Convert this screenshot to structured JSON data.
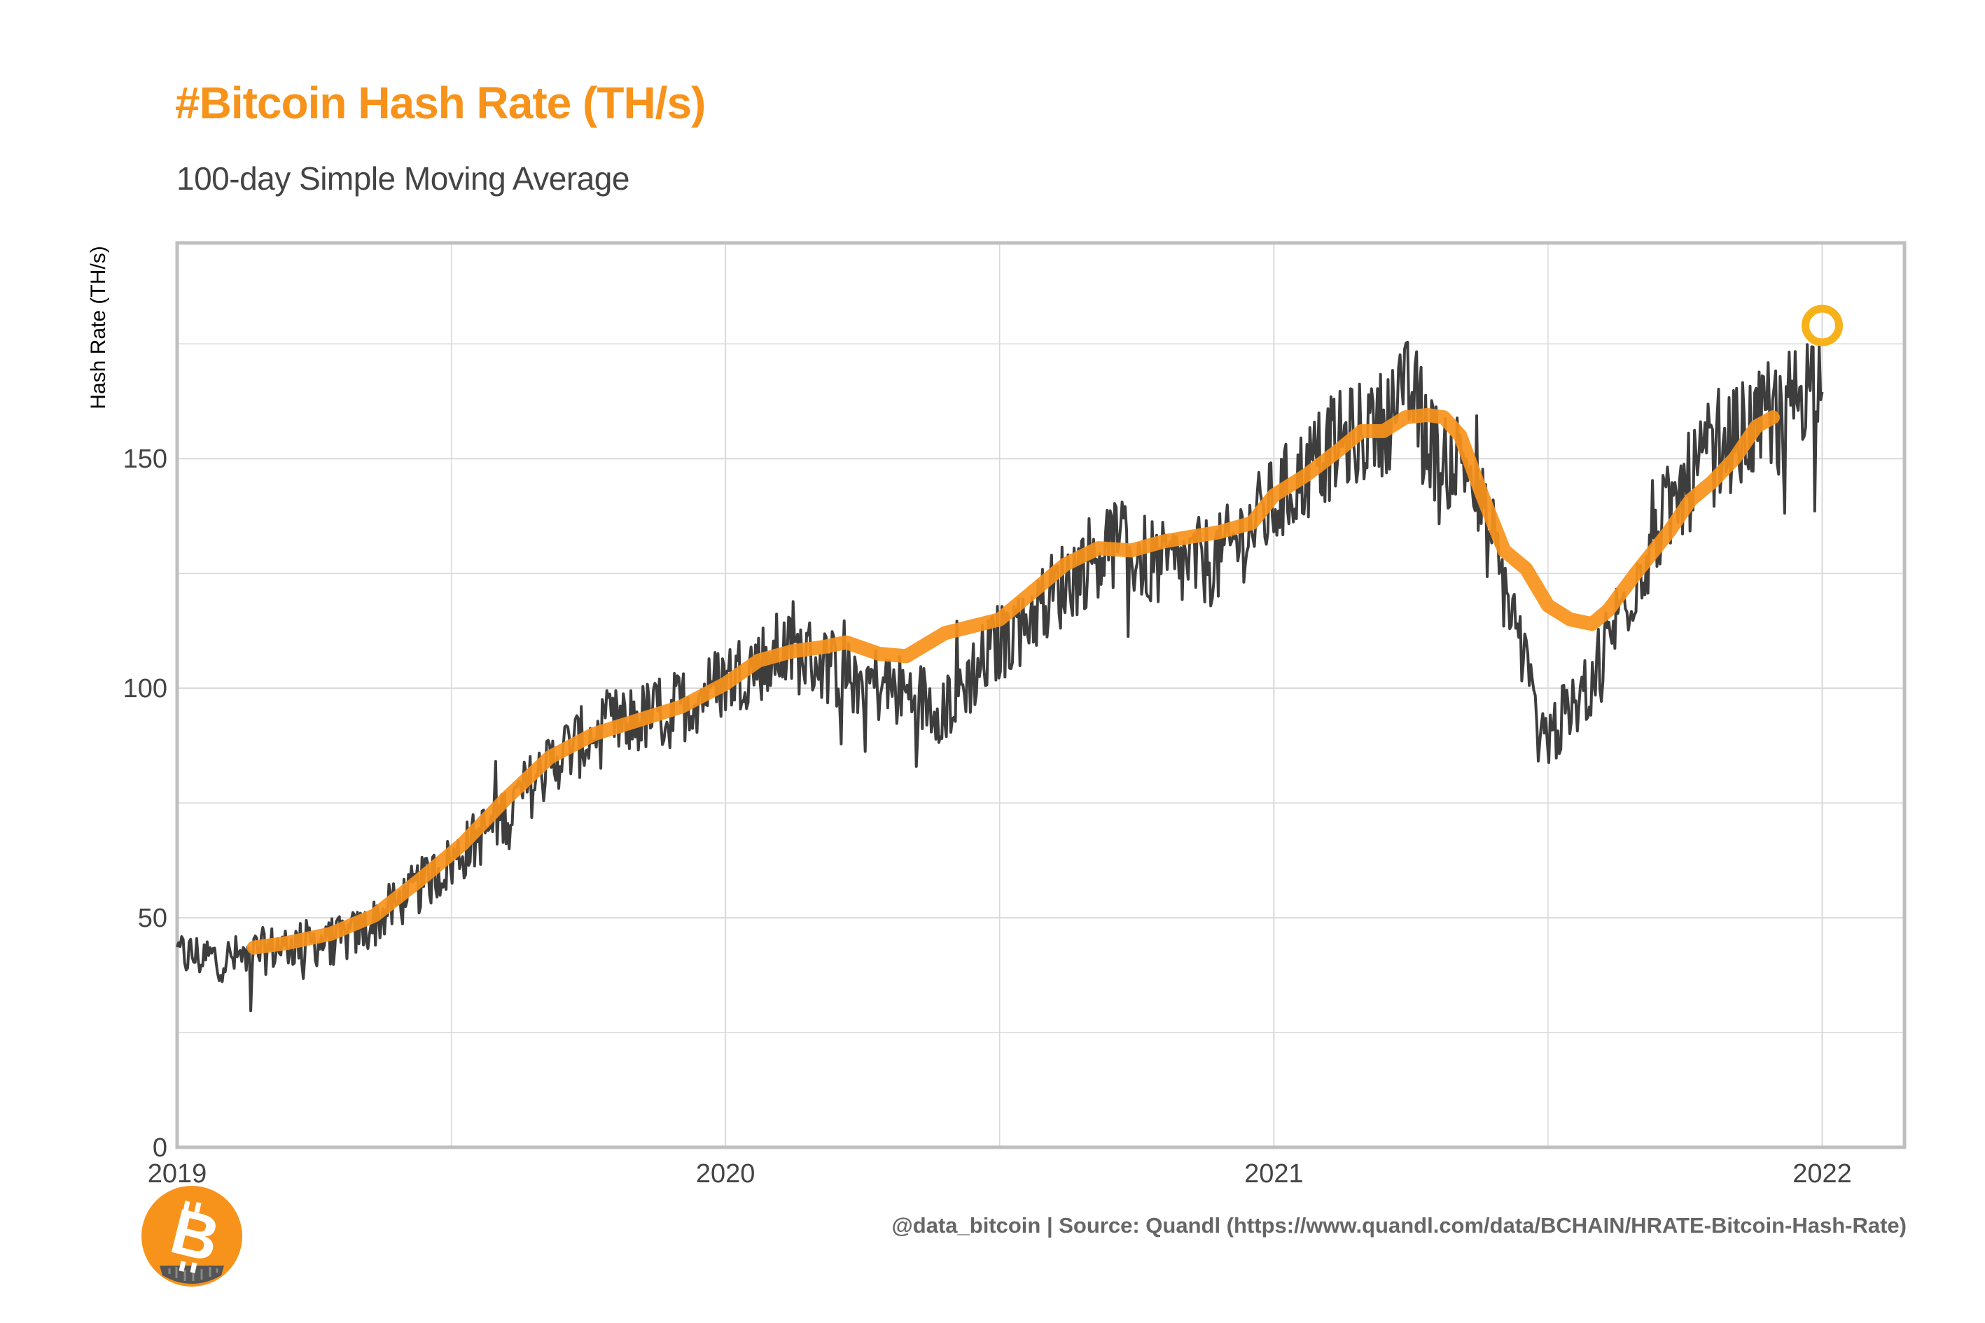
{
  "chart_data": {
    "type": "line",
    "title": "#Bitcoin Hash Rate (TH/s)",
    "subtitle": "100-day Simple Moving Average",
    "xlabel": "",
    "ylabel": "Hash Rate (TH/s)",
    "xlim": [
      2019.0,
      2022.15
    ],
    "ylim": [
      0,
      197
    ],
    "x_ticks": [
      2019,
      2020,
      2021,
      2022
    ],
    "x_tick_labels": [
      "2019",
      "2020",
      "2021",
      "2022"
    ],
    "y_ticks": [
      0,
      50,
      100,
      150
    ],
    "y_tick_labels": [
      "0",
      "50",
      "100",
      "150"
    ],
    "grid": true,
    "legend": "none",
    "series": [
      {
        "role": "daily",
        "color": "#3d3d3d",
        "keypoints": [
          [
            2019.0,
            42
          ],
          [
            2019.1,
            41
          ],
          [
            2019.2,
            44
          ],
          [
            2019.3,
            45
          ],
          [
            2019.35,
            48
          ],
          [
            2019.4,
            53
          ],
          [
            2019.5,
            62
          ],
          [
            2019.6,
            73
          ],
          [
            2019.7,
            86
          ],
          [
            2019.8,
            92
          ],
          [
            2019.9,
            95
          ],
          [
            2020.0,
            102
          ],
          [
            2020.1,
            108
          ],
          [
            2020.15,
            107
          ],
          [
            2020.2,
            104
          ],
          [
            2020.3,
            100
          ],
          [
            2020.4,
            96
          ],
          [
            2020.5,
            110
          ],
          [
            2020.6,
            121
          ],
          [
            2020.7,
            132
          ],
          [
            2020.8,
            126
          ],
          [
            2020.9,
            128
          ],
          [
            2021.0,
            140
          ],
          [
            2021.1,
            152
          ],
          [
            2021.2,
            158
          ],
          [
            2021.25,
            165
          ],
          [
            2021.3,
            150
          ],
          [
            2021.35,
            150
          ],
          [
            2021.4,
            130
          ],
          [
            2021.45,
            110
          ],
          [
            2021.48,
            92
          ],
          [
            2021.5,
            90
          ],
          [
            2021.55,
            95
          ],
          [
            2021.6,
            108
          ],
          [
            2021.7,
            135
          ],
          [
            2021.8,
            152
          ],
          [
            2021.9,
            158
          ],
          [
            2022.0,
            170
          ]
        ],
        "amplitude": 8
      },
      {
        "role": "sma-100",
        "color": "#f7931a",
        "points": [
          [
            2019.14,
            43.5
          ],
          [
            2019.2,
            44.5
          ],
          [
            2019.28,
            46.5
          ],
          [
            2019.36,
            50.5
          ],
          [
            2019.44,
            58
          ],
          [
            2019.52,
            66
          ],
          [
            2019.6,
            76
          ],
          [
            2019.68,
            85
          ],
          [
            2019.76,
            90
          ],
          [
            2019.84,
            93
          ],
          [
            2019.92,
            96
          ],
          [
            2020.0,
            101
          ],
          [
            2020.06,
            106
          ],
          [
            2020.12,
            108
          ],
          [
            2020.18,
            109
          ],
          [
            2020.22,
            110
          ],
          [
            2020.28,
            107.5
          ],
          [
            2020.33,
            107
          ],
          [
            2020.4,
            112
          ],
          [
            2020.5,
            115
          ],
          [
            2020.56,
            121
          ],
          [
            2020.62,
            127
          ],
          [
            2020.68,
            130.5
          ],
          [
            2020.74,
            130
          ],
          [
            2020.8,
            132
          ],
          [
            2020.85,
            133
          ],
          [
            2020.9,
            134
          ],
          [
            2020.96,
            136
          ],
          [
            2021.0,
            142
          ],
          [
            2021.06,
            146.5
          ],
          [
            2021.12,
            152
          ],
          [
            2021.16,
            156
          ],
          [
            2021.2,
            156
          ],
          [
            2021.24,
            159
          ],
          [
            2021.28,
            159.5
          ],
          [
            2021.31,
            159
          ],
          [
            2021.34,
            155
          ],
          [
            2021.38,
            142
          ],
          [
            2021.42,
            130
          ],
          [
            2021.46,
            126
          ],
          [
            2021.5,
            118
          ],
          [
            2021.54,
            115
          ],
          [
            2021.58,
            114
          ],
          [
            2021.61,
            117
          ],
          [
            2021.66,
            125
          ],
          [
            2021.72,
            134
          ],
          [
            2021.76,
            141
          ],
          [
            2021.8,
            145
          ],
          [
            2021.84,
            150
          ],
          [
            2021.88,
            157
          ],
          [
            2021.91,
            159
          ]
        ]
      }
    ],
    "annotations": [
      {
        "type": "circle-marker",
        "x": 2022.0,
        "y": 179,
        "color": "#f7b21a"
      }
    ]
  },
  "caption": "@data_bitcoin | Source: Quandl (https://www.quandl.com/data/BCHAIN/HRATE-Bitcoin-Hash-Rate)",
  "logo": {
    "icon": "bitcoin-logo-icon",
    "color": "#f7931a"
  },
  "colors": {
    "accent": "#f7931a",
    "grid": "#d9d9d9",
    "frame": "#bfbfbf",
    "text": "#444444"
  }
}
